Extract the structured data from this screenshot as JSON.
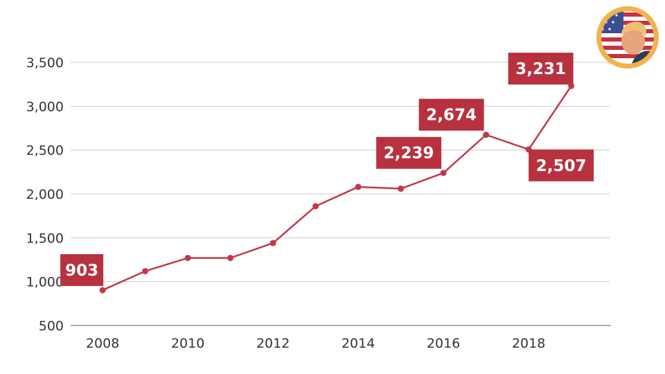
{
  "chart_data": {
    "type": "line",
    "title": "",
    "xlabel": "",
    "ylabel": "",
    "x": [
      2008,
      2009,
      2010,
      2011,
      2012,
      2013,
      2014,
      2015,
      2016,
      2017,
      2018,
      2019
    ],
    "series": [
      {
        "values": [
          903,
          1120,
          1270,
          1270,
          1440,
          1860,
          2080,
          2060,
          2239,
          2674,
          2507,
          3231
        ]
      }
    ],
    "xticks": [
      "2008",
      "2010",
      "2012",
      "2014",
      "2016",
      "2018"
    ],
    "yticks": [
      "500",
      "1,000",
      "1,500",
      "2,000",
      "2,500",
      "3,000",
      "3,500"
    ],
    "ylim": [
      500,
      3500
    ],
    "grid": true,
    "line_color": "#c0394a",
    "label_color": "#b8313f",
    "data_labels": [
      {
        "index": 0,
        "text": "903"
      },
      {
        "index": 8,
        "text": "2,239"
      },
      {
        "index": 9,
        "text": "2,674"
      },
      {
        "index": 10,
        "text": "2,507"
      },
      {
        "index": 11,
        "text": "3,231"
      }
    ]
  },
  "avatar": {
    "icon": "us-flag-person-avatar-icon"
  }
}
